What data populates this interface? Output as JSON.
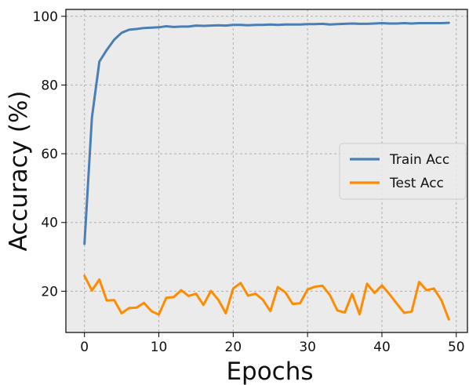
{
  "chart_data": {
    "type": "line",
    "title": "",
    "xlabel": "Epochs",
    "ylabel": "Accuracy (%)",
    "xlim": [
      -2.5,
      51.5
    ],
    "ylim": [
      8,
      102
    ],
    "xticks": [
      0,
      10,
      20,
      30,
      40,
      50
    ],
    "yticks": [
      20,
      40,
      60,
      80,
      100
    ],
    "xtick_labels": [
      "0",
      "10",
      "20",
      "30",
      "40",
      "50"
    ],
    "ytick_labels": [
      "20",
      "40",
      "60",
      "80",
      "100"
    ],
    "grid": true,
    "grid_style": "dashed",
    "background": "#ebebeb",
    "legend_position": "center-right",
    "x": [
      0,
      1,
      2,
      3,
      4,
      5,
      6,
      7,
      8,
      9,
      10,
      11,
      12,
      13,
      14,
      15,
      16,
      17,
      18,
      19,
      20,
      21,
      22,
      23,
      24,
      25,
      26,
      27,
      28,
      29,
      30,
      31,
      32,
      33,
      34,
      35,
      36,
      37,
      38,
      39,
      40,
      41,
      42,
      43,
      44,
      45,
      46,
      47,
      48,
      49
    ],
    "series": [
      {
        "name": "Train Acc",
        "color": "#4a7fb5",
        "values": [
          33.8,
          70.5,
          86.8,
          90.2,
          93.2,
          95.2,
          96.1,
          96.3,
          96.6,
          96.7,
          96.8,
          97.1,
          96.9,
          97.0,
          97.0,
          97.3,
          97.2,
          97.3,
          97.4,
          97.3,
          97.5,
          97.5,
          97.4,
          97.5,
          97.5,
          97.6,
          97.5,
          97.6,
          97.6,
          97.6,
          97.7,
          97.7,
          97.8,
          97.6,
          97.7,
          97.8,
          97.9,
          97.8,
          97.8,
          97.9,
          98.0,
          97.9,
          97.9,
          98.0,
          97.9,
          98.0,
          98.0,
          98.0,
          98.0,
          98.1
        ]
      },
      {
        "name": "Test Acc",
        "color": "#ff8c00",
        "values": [
          24.5,
          20.2,
          23.4,
          17.3,
          17.4,
          13.6,
          15.1,
          15.2,
          16.6,
          14.2,
          13.2,
          18.1,
          18.3,
          20.3,
          18.6,
          19.3,
          16.0,
          20.1,
          17.5,
          13.6,
          20.8,
          22.4,
          18.7,
          19.3,
          17.5,
          14.2,
          21.2,
          19.7,
          16.3,
          16.5,
          20.5,
          21.3,
          21.6,
          18.9,
          14.4,
          13.8,
          19.2,
          13.3,
          22.2,
          19.5,
          21.7,
          19.2,
          16.4,
          13.7,
          14.1,
          22.7,
          20.3,
          20.8,
          17.4,
          11.8
        ]
      }
    ]
  }
}
